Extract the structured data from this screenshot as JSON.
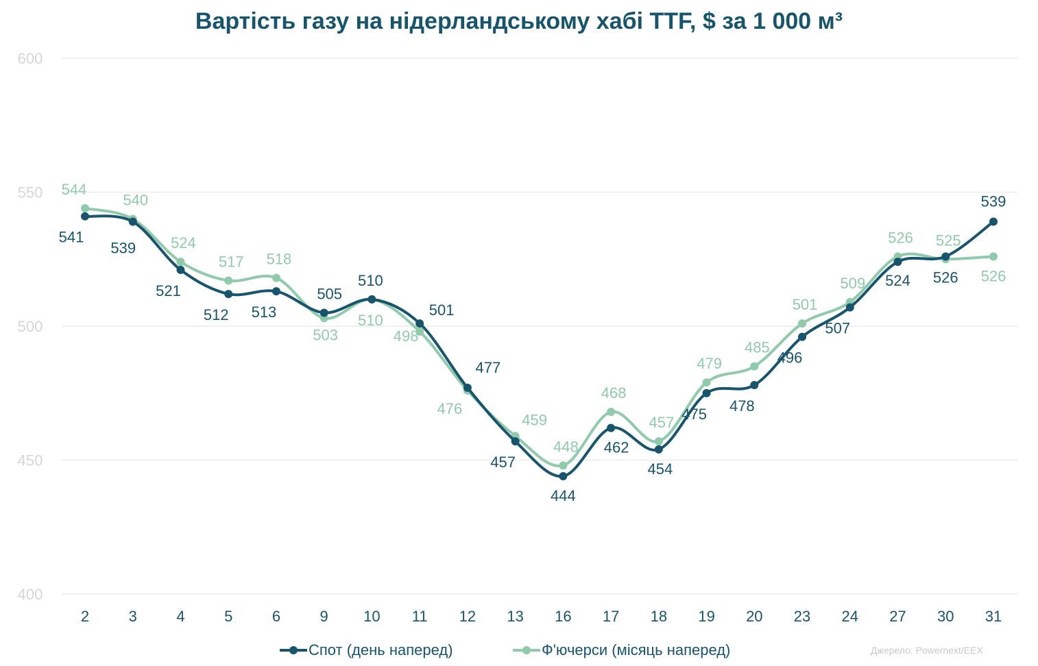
{
  "chart_data": {
    "type": "line",
    "title": "Вартість газу на нідерландському хабі TTF, $ за 1 000 м³",
    "categories": [
      "2",
      "3",
      "4",
      "5",
      "6",
      "9",
      "10",
      "11",
      "12",
      "13",
      "16",
      "17",
      "18",
      "19",
      "20",
      "23",
      "24",
      "27",
      "30",
      "31"
    ],
    "series": [
      {
        "name": "Спот (день наперед)",
        "color": "#17546e",
        "values": [
          541,
          539,
          521,
          512,
          513,
          505,
          510,
          501,
          477,
          457,
          444,
          462,
          454,
          475,
          478,
          496,
          507,
          524,
          526,
          539
        ]
      },
      {
        "name": "Ф'ючерси (місяць наперед)",
        "color": "#8fcbab",
        "values": [
          544,
          540,
          524,
          517,
          518,
          503,
          510,
          498,
          476,
          459,
          448,
          468,
          457,
          479,
          485,
          501,
          509,
          526,
          525,
          526
        ]
      }
    ],
    "yticks": [
      "400",
      "450",
      "500",
      "550",
      "600"
    ],
    "ylim": [
      400,
      600
    ],
    "grid": true,
    "legend": "bottom",
    "source": "Джерело: Powernext/EEX"
  }
}
